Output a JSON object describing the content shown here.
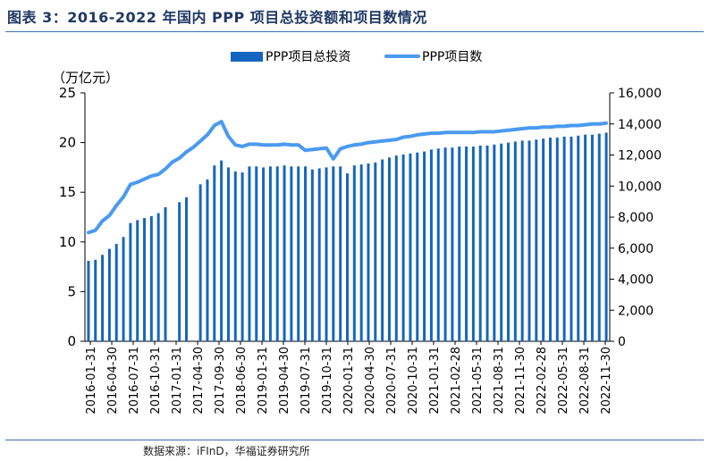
{
  "figure": {
    "title": "图表 3：2016-2022 年国内 PPP 项目总投资额和项目数情况",
    "source": "数据来源：iFInD，华福证券研究所"
  },
  "chart_data": {
    "type": "bar+line",
    "title": "",
    "ylabel_left": "（万亿元）",
    "ylabel_right": "",
    "ylim_left": [
      0,
      25
    ],
    "ylim_right": [
      0,
      16000
    ],
    "yticks_left": [
      "0",
      "5",
      "10",
      "15",
      "20",
      "25"
    ],
    "yticks_right": [
      "0",
      "2,000",
      "4,000",
      "6,000",
      "8,000",
      "10,000",
      "12,000",
      "14,000",
      "16,000"
    ],
    "legend_position": "top-center",
    "colors": {
      "bar": "#1565c0",
      "line": "#4a9af0"
    },
    "x_tick_labels": [
      "2016-01-31",
      "2016-04-30",
      "2016-07-31",
      "2016-10-31",
      "2017-01-31",
      "2017-04-30",
      "2017-09-30",
      "2018-06-30",
      "2019-01-31",
      "2019-04-30",
      "2019-07-31",
      "2019-10-31",
      "2020-01-31",
      "2020-04-30",
      "2020-07-31",
      "2020-10-31",
      "2021-01-31",
      "2021-02-28",
      "2021-05-31",
      "2021-08-31",
      "2021-11-30",
      "2022-02-28",
      "2022-05-31",
      "2022-08-31",
      "2022-11-30"
    ],
    "series": [
      {
        "name": "PPP项目总投资",
        "type": "bar",
        "axis": "left",
        "values": [
          8.1,
          8.2,
          8.7,
          9.3,
          9.8,
          10.5,
          11.9,
          12.2,
          12.4,
          12.6,
          12.9,
          13.5,
          null,
          14.0,
          14.5,
          null,
          15.8,
          16.3,
          17.7,
          18.2,
          17.5,
          17.1,
          17.0,
          17.6,
          17.6,
          17.5,
          17.6,
          17.6,
          17.7,
          17.6,
          17.6,
          17.6,
          17.3,
          17.4,
          17.5,
          17.6,
          17.6,
          16.9,
          17.7,
          17.8,
          17.9,
          18.0,
          18.3,
          18.5,
          18.7,
          18.8,
          18.9,
          19.0,
          19.1,
          19.3,
          19.4,
          19.5,
          19.5,
          19.6,
          19.6,
          19.6,
          19.7,
          19.7,
          19.8,
          19.9,
          20.0,
          20.1,
          20.2,
          20.2,
          20.3,
          20.4,
          20.5,
          20.5,
          20.6,
          20.6,
          20.7,
          20.8,
          20.8,
          20.9,
          21.0
        ]
      },
      {
        "name": "PPP项目数",
        "type": "line",
        "axis": "right",
        "values": [
          7000,
          7150,
          7750,
          8100,
          8750,
          9300,
          10100,
          10250,
          10450,
          10650,
          10750,
          11100,
          11550,
          11800,
          12200,
          12500,
          12900,
          13300,
          13900,
          14150,
          13200,
          12650,
          12550,
          12700,
          12700,
          12650,
          12650,
          12650,
          12700,
          12650,
          12650,
          12300,
          12350,
          12400,
          12450,
          11750,
          12400,
          12550,
          12650,
          12700,
          12800,
          12850,
          12900,
          12950,
          13000,
          13150,
          13200,
          13300,
          13350,
          13400,
          13400,
          13450,
          13450,
          13450,
          13450,
          13450,
          13500,
          13500,
          13500,
          13550,
          13600,
          13650,
          13700,
          13750,
          13750,
          13800,
          13800,
          13850,
          13850,
          13900,
          13900,
          13950,
          14000,
          14000,
          14050
        ]
      }
    ]
  }
}
